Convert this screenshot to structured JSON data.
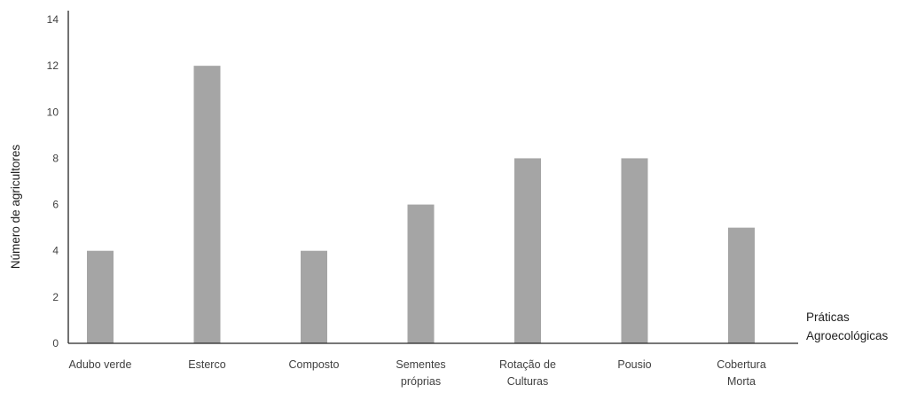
{
  "chart_data": {
    "type": "bar",
    "categories": [
      [
        "Adubo verde"
      ],
      [
        "Esterco"
      ],
      [
        "Composto"
      ],
      [
        "Sementes",
        "próprias"
      ],
      [
        "Rotação de",
        "Culturas"
      ],
      [
        "Pousio"
      ],
      [
        "Cobertura",
        "Morta"
      ]
    ],
    "values": [
      4,
      12,
      4,
      6,
      8,
      8,
      5
    ],
    "ylabel": "Número de agricultores",
    "xlabel": [
      "Práticas",
      "Agroecológicas"
    ],
    "ylim": [
      0,
      14
    ],
    "yticks": [
      0,
      2,
      4,
      6,
      8,
      10,
      12,
      14
    ],
    "grid": false,
    "colors": {
      "bar": "#a5a5a5",
      "axis": "#262626"
    }
  }
}
